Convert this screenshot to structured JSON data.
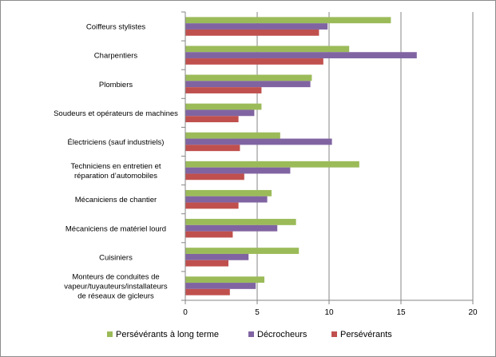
{
  "chart_data": {
    "type": "bar",
    "orientation": "horizontal",
    "categories": [
      [
        "Coiffeurs stylistes"
      ],
      [
        "Charpentiers"
      ],
      [
        "Plombiers"
      ],
      [
        "Soudeurs et opérateurs de machines"
      ],
      [
        "Électriciens (sauf industriels)"
      ],
      [
        "Techniciens en entretien et",
        "réparation d’automobiles"
      ],
      [
        "Mécaniciens de chantier"
      ],
      [
        "Mécaniciens de matériel lourd"
      ],
      [
        "Cuisiniers"
      ],
      [
        "Monteurs de conduites de",
        "vapeur/tuyauteurs/installateurs",
        "de réseaux de gicleurs"
      ]
    ],
    "series": [
      {
        "name": "Persévérants à long terme",
        "color": "#9BBB59",
        "values": [
          14.3,
          11.4,
          8.8,
          5.3,
          6.6,
          12.1,
          6.0,
          7.7,
          7.9,
          5.5
        ]
      },
      {
        "name": "Décrocheurs",
        "color": "#8064A2",
        "values": [
          9.9,
          16.1,
          8.7,
          4.8,
          10.2,
          7.3,
          5.7,
          6.4,
          4.4,
          4.9
        ]
      },
      {
        "name": "Persévérants",
        "color": "#C0504D",
        "values": [
          9.3,
          9.6,
          5.3,
          3.7,
          3.8,
          4.1,
          3.7,
          3.3,
          3.0,
          3.1
        ]
      }
    ],
    "xlim": [
      0,
      20
    ],
    "xticks": [
      "0",
      "5",
      "10",
      "15",
      "20"
    ],
    "grid": "vertical",
    "legend": "bottom"
  }
}
